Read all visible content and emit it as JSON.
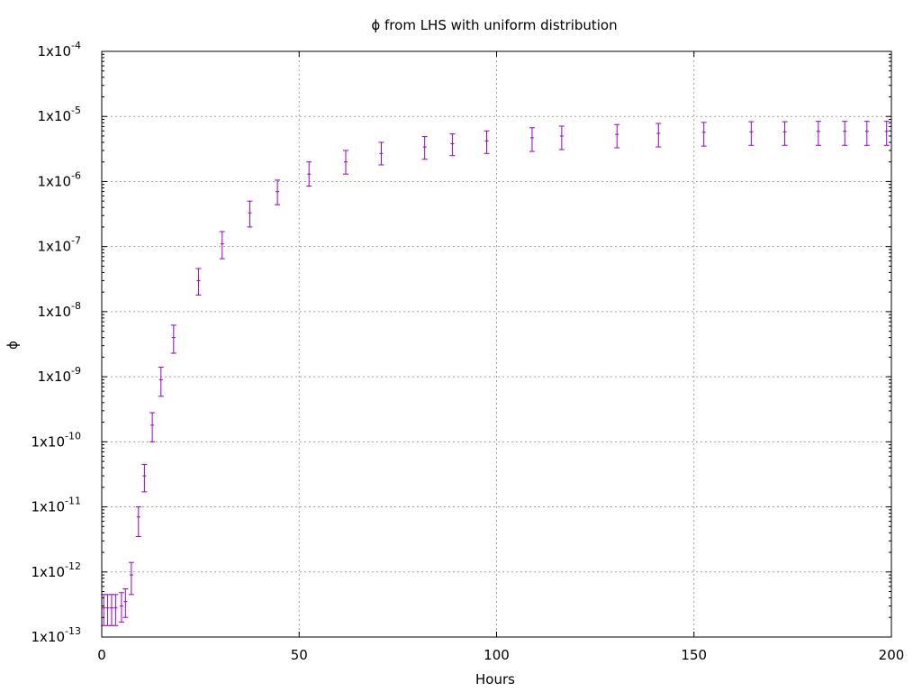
{
  "chart_data": {
    "type": "scatter",
    "title": "ϕ from LHS with uniform distribution",
    "xlabel": "Hours",
    "ylabel": "ϕ",
    "xlim": [
      0,
      200
    ],
    "ylim": [
      1e-13,
      0.0001
    ],
    "yscale": "log",
    "grid": true,
    "x_ticks": [
      0,
      50,
      100,
      150,
      200
    ],
    "y_ticks": [
      {
        "base": "1x10",
        "exp": "-13",
        "value": 1e-13
      },
      {
        "base": "1x10",
        "exp": "-12",
        "value": 1e-12
      },
      {
        "base": "1x10",
        "exp": "-11",
        "value": 1e-11
      },
      {
        "base": "1x10",
        "exp": "-10",
        "value": 1e-10
      },
      {
        "base": "1x10",
        "exp": "-9",
        "value": 1e-09
      },
      {
        "base": "1x10",
        "exp": "-8",
        "value": 1e-08
      },
      {
        "base": "1x10",
        "exp": "-7",
        "value": 1e-07
      },
      {
        "base": "1x10",
        "exp": "-6",
        "value": 1e-06
      },
      {
        "base": "1x10",
        "exp": "-5",
        "value": 1e-05
      },
      {
        "base": "1x10",
        "exp": "-4",
        "value": 0.0001
      }
    ],
    "colors": {
      "series": "#9400d3",
      "grid": "#a0a0a0",
      "axis": "#000000"
    },
    "series": [
      {
        "points": [
          {
            "x": 0.5,
            "y": 2.8e-13,
            "ylow": 1.5e-13,
            "yhigh": 4.5e-13
          },
          {
            "x": 1.5,
            "y": 2.8e-13,
            "ylow": 1.5e-13,
            "yhigh": 4.5e-13
          },
          {
            "x": 2.5,
            "y": 2.8e-13,
            "ylow": 1.5e-13,
            "yhigh": 4.5e-13
          },
          {
            "x": 3.5,
            "y": 2.8e-13,
            "ylow": 1.5e-13,
            "yhigh": 4.5e-13
          },
          {
            "x": 5,
            "y": 3e-13,
            "ylow": 1.7e-13,
            "yhigh": 4.8e-13
          },
          {
            "x": 6,
            "y": 3.5e-13,
            "ylow": 2e-13,
            "yhigh": 5.5e-13
          },
          {
            "x": 7.5,
            "y": 9e-13,
            "ylow": 4.5e-13,
            "yhigh": 1.4e-12
          },
          {
            "x": 9.3,
            "y": 7e-12,
            "ylow": 3.5e-12,
            "yhigh": 1e-11
          },
          {
            "x": 10.8,
            "y": 3e-11,
            "ylow": 1.7e-11,
            "yhigh": 4.5e-11
          },
          {
            "x": 12.8,
            "y": 1.8e-10,
            "ylow": 1e-10,
            "yhigh": 2.8e-10
          },
          {
            "x": 15,
            "y": 9e-10,
            "ylow": 5e-10,
            "yhigh": 1.4e-09
          },
          {
            "x": 18.2,
            "y": 4e-09,
            "ylow": 2.3e-09,
            "yhigh": 6.2e-09
          },
          {
            "x": 24.5,
            "y": 3e-08,
            "ylow": 1.8e-08,
            "yhigh": 4.6e-08
          },
          {
            "x": 30.5,
            "y": 1.1e-07,
            "ylow": 6.5e-08,
            "yhigh": 1.7e-07
          },
          {
            "x": 37.5,
            "y": 3.3e-07,
            "ylow": 2e-07,
            "yhigh": 5e-07
          },
          {
            "x": 44.5,
            "y": 7e-07,
            "ylow": 4.4e-07,
            "yhigh": 1.05e-06
          },
          {
            "x": 52.5,
            "y": 1.3e-06,
            "ylow": 8.5e-07,
            "yhigh": 2e-06
          },
          {
            "x": 61.8,
            "y": 2e-06,
            "ylow": 1.3e-06,
            "yhigh": 3e-06
          },
          {
            "x": 70.8,
            "y": 2.7e-06,
            "ylow": 1.8e-06,
            "yhigh": 4e-06
          },
          {
            "x": 81.8,
            "y": 3.4e-06,
            "ylow": 2.2e-06,
            "yhigh": 4.9e-06
          },
          {
            "x": 88.8,
            "y": 3.8e-06,
            "ylow": 2.5e-06,
            "yhigh": 5.4e-06
          },
          {
            "x": 97.5,
            "y": 4.2e-06,
            "ylow": 2.7e-06,
            "yhigh": 6e-06
          },
          {
            "x": 109,
            "y": 4.7e-06,
            "ylow": 2.9e-06,
            "yhigh": 6.7e-06
          },
          {
            "x": 116.5,
            "y": 5e-06,
            "ylow": 3.1e-06,
            "yhigh": 7.1e-06
          },
          {
            "x": 130.5,
            "y": 5.3e-06,
            "ylow": 3.3e-06,
            "yhigh": 7.5e-06
          },
          {
            "x": 141,
            "y": 5.5e-06,
            "ylow": 3.4e-06,
            "yhigh": 7.8e-06
          },
          {
            "x": 152.5,
            "y": 5.7e-06,
            "ylow": 3.5e-06,
            "yhigh": 8.1e-06
          },
          {
            "x": 164.5,
            "y": 5.8e-06,
            "ylow": 3.6e-06,
            "yhigh": 8.3e-06
          },
          {
            "x": 173,
            "y": 5.8e-06,
            "ylow": 3.6e-06,
            "yhigh": 8.3e-06
          },
          {
            "x": 181.5,
            "y": 5.9e-06,
            "ylow": 3.6e-06,
            "yhigh": 8.4e-06
          },
          {
            "x": 188.2,
            "y": 5.9e-06,
            "ylow": 3.6e-06,
            "yhigh": 8.4e-06
          },
          {
            "x": 193.8,
            "y": 5.9e-06,
            "ylow": 3.6e-06,
            "yhigh": 8.4e-06
          },
          {
            "x": 198.8,
            "y": 5.9e-06,
            "ylow": 3.6e-06,
            "yhigh": 8.4e-06
          }
        ]
      }
    ]
  }
}
